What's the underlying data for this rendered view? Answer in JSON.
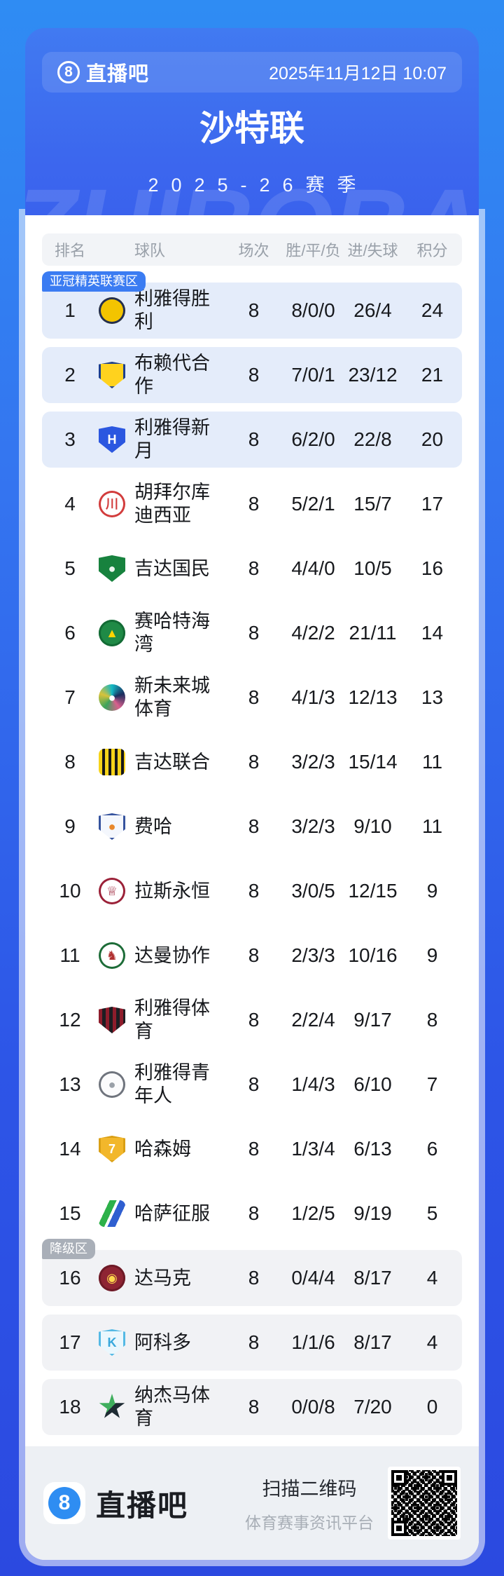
{
  "header": {
    "brand": "直播吧",
    "datetime": "2025年11月12日 10:07"
  },
  "title": "沙特联",
  "season": "2025-26赛季",
  "watermark": "ZHIBOBA",
  "colors": {
    "accent_blue": "#3b7cf2",
    "elite_row_bg": "#e4ecfa",
    "relegation_row_bg": "#f1f2f5",
    "relegation_badge": "#a9afb8",
    "page_top": "#2f8cf3",
    "page_bottom": "#2b49e0"
  },
  "table": {
    "columns": [
      "排名",
      "球队",
      "场次",
      "胜/平/负",
      "进/失球",
      "积分"
    ],
    "zones": {
      "elite": "亚冠精英联赛区",
      "relegation": "降级区"
    },
    "rows": [
      {
        "rank": 1,
        "team": "利雅得胜利",
        "played": 8,
        "wdl": "8/0/0",
        "goals": "26/4",
        "points": 24,
        "zone": "elite",
        "badge": true,
        "logo": {
          "shape": "circle",
          "bg": "#f3c400",
          "border": "#232f52"
        }
      },
      {
        "rank": 2,
        "team": "布赖代合作",
        "played": 8,
        "wdl": "7/0/1",
        "goals": "23/12",
        "points": 21,
        "zone": "elite",
        "logo": {
          "shape": "shield",
          "bg": "#ffd21e",
          "border": "#1c3f8f"
        }
      },
      {
        "rank": 3,
        "team": "利雅得新月",
        "played": 8,
        "wdl": "6/2/0",
        "goals": "22/8",
        "points": 20,
        "zone": "elite",
        "logo": {
          "shape": "shield",
          "bg": "#2b57e0",
          "glyph": "H",
          "glyphColor": "#ffffff"
        }
      },
      {
        "rank": 4,
        "team": "胡拜尔库迪西亚",
        "played": 8,
        "wdl": "5/2/1",
        "goals": "15/7",
        "points": 17,
        "logo": {
          "shape": "circle",
          "bg": "#ffffff",
          "border": "#d23c3c",
          "glyph": "川",
          "glyphColor": "#d23c3c"
        }
      },
      {
        "rank": 5,
        "team": "吉达国民",
        "played": 8,
        "wdl": "4/4/0",
        "goals": "10/5",
        "points": 16,
        "logo": {
          "shape": "shield",
          "bg": "#17823e",
          "glyph": "●",
          "glyphColor": "#eaf6ee"
        }
      },
      {
        "rank": 6,
        "team": "赛哈特海湾",
        "played": 8,
        "wdl": "4/2/2",
        "goals": "21/11",
        "points": 14,
        "logo": {
          "shape": "circle",
          "bg": "#1f8a46",
          "border": "#136b35",
          "glyph": "▲",
          "glyphColor": "#ffd400"
        }
      },
      {
        "rank": 7,
        "team": "新未来城体育",
        "played": 8,
        "wdl": "4/1/3",
        "goals": "12/13",
        "points": 13,
        "logo": {
          "shape": "circle",
          "bg": "conic-gradient(#14b8c4,#1b2d5e,#d95f8d,#3aa35c,#d8c23a,#14b8c4)",
          "glyph": "●",
          "glyphColor": "#ffffff"
        }
      },
      {
        "rank": 8,
        "team": "吉达联合",
        "played": 8,
        "wdl": "3/2/3",
        "goals": "15/14",
        "points": 11,
        "logo": {
          "shape": "square",
          "bg": "repeating-linear-gradient(90deg,#f6d31a 0 5px,#17171a 5px 9px)"
        }
      },
      {
        "rank": 9,
        "team": "费哈",
        "played": 8,
        "wdl": "3/2/3",
        "goals": "9/10",
        "points": 11,
        "logo": {
          "shape": "shield",
          "bg": "#f4f7fd",
          "border": "#35539e",
          "glyph": "●",
          "glyphColor": "#e8872b"
        }
      },
      {
        "rank": 10,
        "team": "拉斯永恒",
        "played": 8,
        "wdl": "3/0/5",
        "goals": "12/15",
        "points": 9,
        "logo": {
          "shape": "circle",
          "bg": "#ffffff",
          "border": "#9b2138",
          "glyph": "♕",
          "glyphColor": "#9b2138"
        }
      },
      {
        "rank": 11,
        "team": "达曼协作",
        "played": 8,
        "wdl": "2/3/3",
        "goals": "10/16",
        "points": 9,
        "logo": {
          "shape": "circle",
          "bg": "#ffffff",
          "border": "#1d6c38",
          "glyph": "♞",
          "glyphColor": "#b03030"
        }
      },
      {
        "rank": 12,
        "team": "利雅得体育",
        "played": 8,
        "wdl": "2/2/4",
        "goals": "9/17",
        "points": 8,
        "logo": {
          "shape": "shield",
          "bg": "repeating-linear-gradient(90deg,#8e1d2c 0 5px,#1d1d22 5px 10px)"
        }
      },
      {
        "rank": 13,
        "team": "利雅得青年人",
        "played": 8,
        "wdl": "1/4/3",
        "goals": "6/10",
        "points": 7,
        "logo": {
          "shape": "circle",
          "bg": "#fbfbfc",
          "border": "#6f747d",
          "glyph": "●",
          "glyphColor": "#9aa0a8"
        }
      },
      {
        "rank": 14,
        "team": "哈森姆",
        "played": 8,
        "wdl": "1/3/4",
        "goals": "6/13",
        "points": 6,
        "logo": {
          "shape": "shield",
          "bg": "#f2b72b",
          "border": "#d99f15",
          "glyph": "7",
          "glyphColor": "#ffffff"
        }
      },
      {
        "rank": 15,
        "team": "哈萨征服",
        "played": 8,
        "wdl": "1/2/5",
        "goals": "9/19",
        "points": 5,
        "logo": {
          "shape": "square",
          "bg": "linear-gradient(115deg,#ffffff 0 28%,#2db14a 28% 46%,#ffffff 46% 54%,#2f5fd0 54% 74%,#ffffff 74%)"
        }
      },
      {
        "rank": 16,
        "team": "达马克",
        "played": 8,
        "wdl": "0/4/4",
        "goals": "8/17",
        "points": 4,
        "zone": "relegation",
        "badge": true,
        "logo": {
          "shape": "circle",
          "bg": "#8e2433",
          "border": "#6e1a27",
          "glyph": "◉",
          "glyphColor": "#ffd84d"
        }
      },
      {
        "rank": 17,
        "team": "阿科多",
        "played": 8,
        "wdl": "1/1/6",
        "goals": "8/17",
        "points": 4,
        "zone": "relegation",
        "logo": {
          "shape": "shield",
          "bg": "#eaf7fd",
          "border": "#54b9e4",
          "glyph": "K",
          "glyphColor": "#38a8dc"
        }
      },
      {
        "rank": 18,
        "team": "纳杰马体育",
        "played": 8,
        "wdl": "0/0/8",
        "goals": "7/20",
        "points": 0,
        "zone": "relegation",
        "logo": {
          "shape": "star",
          "bg": "linear-gradient(135deg,#3fae5d 0 50%,#1e2b33 50%)"
        }
      }
    ]
  },
  "footer": {
    "brand": "直播吧",
    "brand_glyph": "8",
    "scan": "扫描二维码",
    "tagline": "体育赛事资讯平台",
    "qr_label": "qr-code"
  }
}
